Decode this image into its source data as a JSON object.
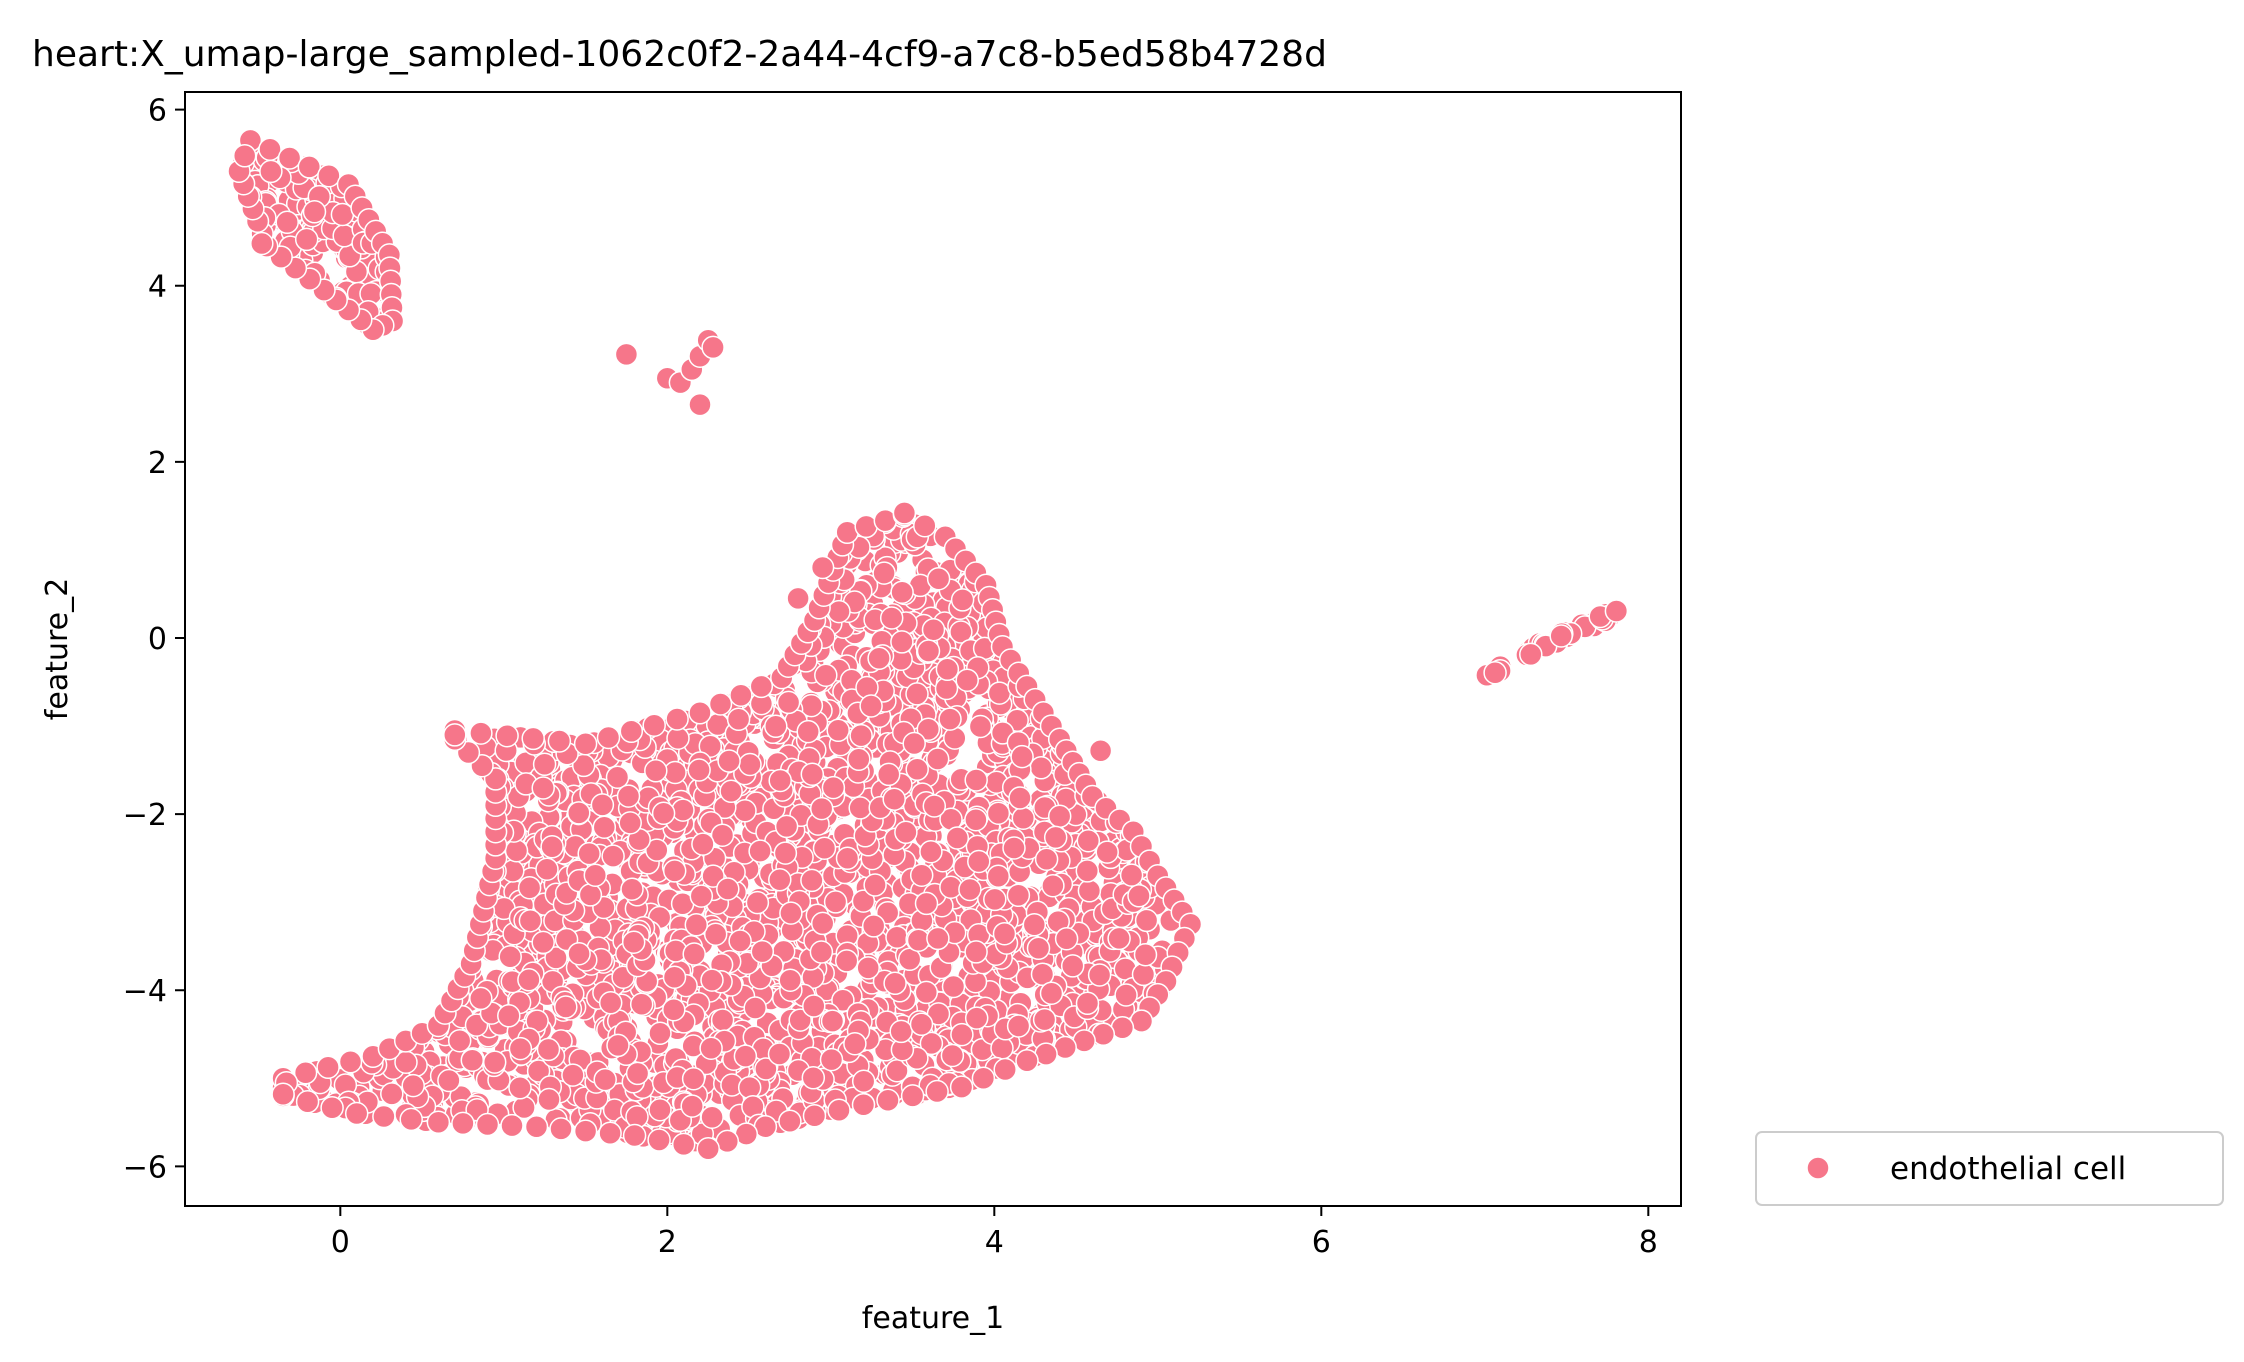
{
  "chart_data": {
    "type": "scatter",
    "title": "heart:X_umap-large_sampled-1062c0f2-2a44-4cf9-a7c8-b5ed58b4728d",
    "xlabel": "feature_1",
    "ylabel": "feature_2",
    "xlim": [
      -0.95,
      8.2
    ],
    "ylim": [
      -6.45,
      6.2
    ],
    "xticks": [
      0,
      2,
      4,
      6,
      8
    ],
    "yticks": [
      -6,
      -4,
      -2,
      0,
      2,
      4,
      6
    ],
    "grid": false,
    "legend_position": "outside-lower-right",
    "series": [
      {
        "name": "endothelial cell",
        "color": "#f6768a",
        "clusters": [
          {
            "id": "upper-left",
            "n": 150,
            "polygon": [
              [
                -0.55,
                5.65
              ],
              [
                0.05,
                5.15
              ],
              [
                0.3,
                4.35
              ],
              [
                0.32,
                3.6
              ],
              [
                0.2,
                3.5
              ],
              [
                -0.1,
                3.95
              ],
              [
                -0.45,
                4.45
              ],
              [
                -0.62,
                5.3
              ]
            ]
          },
          {
            "id": "small-middle",
            "n": 8,
            "points": [
              [
                1.75,
                3.22
              ],
              [
                2.0,
                2.95
              ],
              [
                2.08,
                2.9
              ],
              [
                2.15,
                3.05
              ],
              [
                2.2,
                3.2
              ],
              [
                2.25,
                3.38
              ],
              [
                2.2,
                2.65
              ],
              [
                2.28,
                3.3
              ]
            ]
          },
          {
            "id": "right-streak",
            "n": 35,
            "segment": [
              [
                7.0,
                -0.42
              ],
              [
                7.78,
                0.28
              ]
            ]
          },
          {
            "id": "main-mass",
            "n": 2600,
            "polygon": [
              [
                0.7,
                -1.05
              ],
              [
                1.5,
                -1.2
              ],
              [
                2.2,
                -0.85
              ],
              [
                2.7,
                -0.45
              ],
              [
                2.9,
                0.2
              ],
              [
                3.1,
                1.2
              ],
              [
                3.45,
                1.4
              ],
              [
                3.7,
                1.15
              ],
              [
                3.95,
                0.6
              ],
              [
                4.05,
                -0.1
              ],
              [
                4.4,
                -1.15
              ],
              [
                4.6,
                -1.8
              ],
              [
                4.85,
                -2.2
              ],
              [
                5.0,
                -2.7
              ],
              [
                5.2,
                -3.25
              ],
              [
                5.05,
                -3.9
              ],
              [
                4.9,
                -4.35
              ],
              [
                4.2,
                -4.8
              ],
              [
                3.8,
                -5.1
              ],
              [
                3.2,
                -5.3
              ],
              [
                2.6,
                -5.55
              ],
              [
                2.25,
                -5.8
              ],
              [
                1.8,
                -5.65
              ],
              [
                1.2,
                -5.55
              ],
              [
                0.6,
                -5.5
              ],
              [
                0.1,
                -5.4
              ],
              [
                -0.35,
                -5.2
              ],
              [
                -0.35,
                -5.0
              ],
              [
                0.2,
                -4.75
              ],
              [
                0.6,
                -4.4
              ],
              [
                0.8,
                -3.7
              ],
              [
                0.95,
                -2.5
              ],
              [
                0.95,
                -1.6
              ],
              [
                0.7,
                -1.15
              ]
            ]
          }
        ],
        "outliers": [
          [
            -0.48,
            4.48
          ],
          [
            4.65,
            -1.28
          ],
          [
            3.45,
            1.42
          ],
          [
            2.95,
            0.8
          ],
          [
            2.8,
            0.45
          ],
          [
            -0.33,
            -5.05
          ],
          [
            -0.35,
            -5.18
          ]
        ]
      }
    ]
  }
}
